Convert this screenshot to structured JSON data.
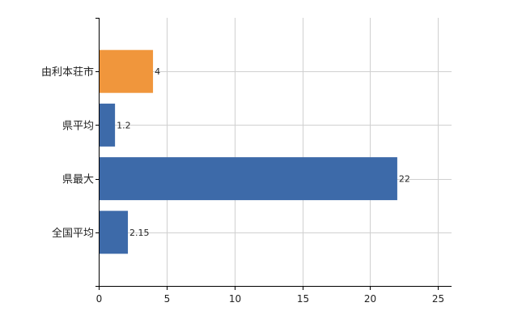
{
  "chart_data": {
    "type": "bar",
    "orientation": "horizontal",
    "categories": [
      "由利本荘市",
      "県平均",
      "県最大",
      "全国平均"
    ],
    "values": [
      4,
      1.2,
      22,
      2.15
    ],
    "data_labels": [
      "4",
      "1.2",
      "22",
      "2.15"
    ],
    "bar_colors": [
      "#f0963c",
      "#3d6aa9",
      "#3d6aa9",
      "#3d6aa9"
    ],
    "xlim": [
      0,
      26
    ],
    "xticks": [
      0,
      5,
      10,
      15,
      20,
      25
    ],
    "xtick_labels": [
      "0",
      "5",
      "10",
      "15",
      "20",
      "25"
    ],
    "grid": "vertical",
    "legend": "none"
  },
  "colors": {
    "highlight": "#f0963c",
    "series": "#3d6aa9",
    "grid": "#d0d0d0",
    "axis": "#000000"
  }
}
